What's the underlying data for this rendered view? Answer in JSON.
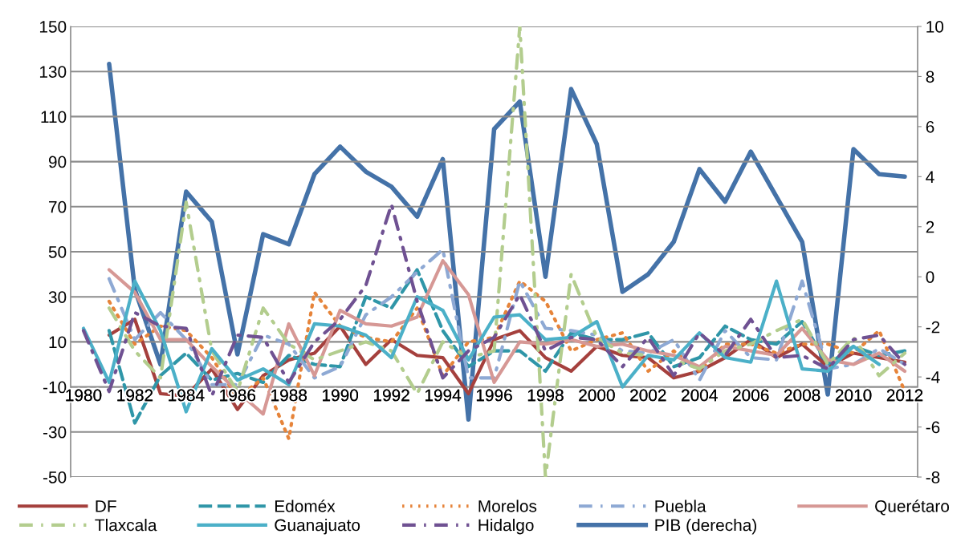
{
  "chart_data": {
    "type": "line",
    "categories": [
      "1980",
      null,
      "1982",
      null,
      "1984",
      null,
      "1986",
      null,
      "1988",
      null,
      "1990",
      null,
      "1992",
      null,
      "1994",
      null,
      "1996",
      null,
      "1998",
      null,
      "2000",
      null,
      "2002",
      null,
      "2004",
      null,
      "2006",
      null,
      "2008",
      null,
      "2010",
      null,
      "2012"
    ],
    "series": [
      {
        "name": "DF",
        "color": "#a5403d",
        "line_style": "solid",
        "values": [
          null,
          13,
          20,
          -13,
          -14,
          -2,
          -20,
          -5,
          2,
          5,
          17,
          0,
          11,
          4,
          3,
          -13,
          11,
          15,
          3,
          -3,
          8,
          4,
          3,
          -6,
          -3,
          3,
          11,
          3,
          9,
          -1,
          5,
          3,
          1
        ]
      },
      {
        "name": "Edoméx",
        "color": "#2f96a8",
        "line_style": "dashed",
        "values": [
          null,
          15,
          -26,
          -5,
          5,
          -7,
          -4,
          -8,
          4,
          0,
          -1,
          30,
          25,
          42,
          15,
          -1,
          6,
          6,
          -3,
          14,
          11,
          11,
          14,
          -1,
          3,
          17,
          11,
          9,
          19,
          0,
          8,
          4,
          6
        ]
      },
      {
        "name": "Morelos",
        "color": "#e6843a",
        "line_style": "dotted",
        "values": [
          null,
          28,
          9,
          17,
          15,
          3,
          -15,
          -6,
          -33,
          32,
          17,
          12,
          10,
          25,
          -5,
          10,
          12,
          37,
          28,
          6,
          11,
          14,
          -3,
          6,
          -3,
          9,
          9,
          5,
          9,
          9,
          5,
          15,
          -12
        ]
      },
      {
        "name": "Puebla",
        "color": "#8ea9d4",
        "line_style": "dashdot",
        "values": [
          null,
          38,
          11,
          23,
          11,
          -9,
          -9,
          13,
          9,
          -6,
          -1,
          22,
          30,
          41,
          51,
          -6,
          -6,
          37,
          16,
          15,
          13,
          6,
          5,
          11,
          -7,
          15,
          3,
          2,
          37,
          -2,
          0,
          7,
          0
        ]
      },
      {
        "name": "Querétaro",
        "color": "#d69895",
        "line_style": "solid",
        "values": [
          null,
          42,
          32,
          11,
          11,
          -1,
          -12,
          -22,
          18,
          -5,
          24,
          18,
          17,
          21,
          46,
          31,
          -8,
          10,
          9,
          11,
          8,
          9,
          6,
          4,
          -1,
          8,
          6,
          4,
          16,
          2,
          0,
          5,
          -3
        ]
      },
      {
        "name": "Tlaxcala",
        "color": "#b3cd8e",
        "line_style": "dashdot",
        "values": [
          null,
          25,
          6,
          -6,
          72,
          6,
          -12,
          25,
          9,
          2,
          6,
          10,
          6,
          -13,
          10,
          3,
          6,
          150,
          -50,
          40,
          12,
          5,
          4,
          2,
          -2,
          6,
          9,
          15,
          20,
          0,
          12,
          -5,
          5
        ]
      },
      {
        "name": "Guanajuato",
        "color": "#4bb0c8",
        "line_style": "solid",
        "values": [
          16,
          -8,
          37,
          15,
          -21,
          7,
          -7,
          -2,
          -9,
          18,
          17,
          13,
          3,
          30,
          24,
          2,
          21,
          22,
          11,
          12,
          19,
          -10,
          4,
          2,
          14,
          3,
          1,
          37,
          -2,
          -3,
          8,
          0,
          null
        ]
      },
      {
        "name": "Hidalgo",
        "color": "#6f5192",
        "line_style": "dashdot",
        "values": [
          15,
          -12,
          23,
          17,
          16,
          -14,
          13,
          12,
          -8,
          10,
          20,
          35,
          71,
          28,
          -6,
          6,
          12,
          31,
          6,
          12,
          11,
          -1,
          12,
          -5,
          14,
          4,
          20,
          3,
          4,
          -2,
          11,
          13,
          0
        ]
      },
      {
        "name": "PIB (derecha)",
        "color": "#4472a8",
        "line_style": "solid",
        "axis": "y2",
        "values": [
          null,
          8.5,
          -0.5,
          -3.5,
          3.4,
          2.2,
          -3.1,
          1.7,
          1.3,
          4.1,
          5.2,
          4.2,
          3.6,
          2.4,
          4.7,
          -5.7,
          5.9,
          7.0,
          0.0,
          7.5,
          5.3,
          -0.6,
          0.1,
          1.4,
          4.3,
          3.0,
          5.0,
          3.2,
          1.4,
          -4.7,
          5.1,
          4.1,
          4.0
        ]
      }
    ],
    "ylim": [
      -50,
      150
    ],
    "yticks": [
      -50,
      -30,
      -10,
      10,
      30,
      50,
      70,
      90,
      110,
      130,
      150
    ],
    "y2lim": [
      -8,
      10
    ],
    "y2ticks": [
      -8,
      -6,
      -4,
      -2,
      0,
      2,
      4,
      6,
      8,
      10
    ],
    "grid": "y",
    "legend": "bottom",
    "marker": "none"
  }
}
